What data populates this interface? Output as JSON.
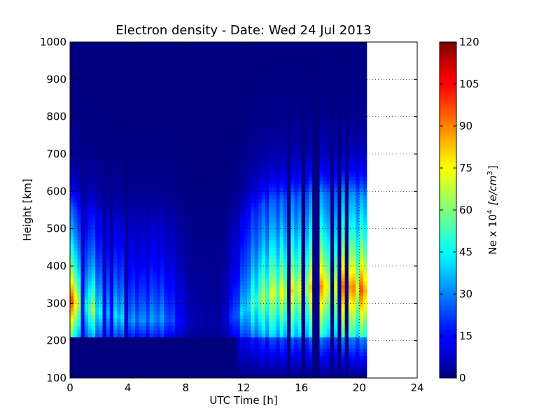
{
  "chart_data": {
    "type": "heatmap",
    "title": "Electron density - Date: Wed 24 Jul 2013",
    "xlabel": "UTC Time [h]",
    "ylabel": "Height [km]",
    "colorbar_label": "Ne x 10",
    "colorbar_label_sup": "4",
    "colorbar_unit": "[e/cm",
    "colorbar_unit_sup": "3",
    "colorbar_unit_end": "]",
    "xlim": [
      0,
      24
    ],
    "ylim": [
      100,
      1000
    ],
    "x_ticks": [
      "0",
      "4",
      "8",
      "12",
      "16",
      "20",
      "24"
    ],
    "y_ticks": [
      "100",
      "200",
      "300",
      "400",
      "500",
      "600",
      "700",
      "800",
      "900",
      "1000"
    ],
    "colorbar_range": [
      0,
      120
    ],
    "colorbar_ticks": [
      "0",
      "15",
      "30",
      "45",
      "60",
      "75",
      "90",
      "105",
      "120"
    ],
    "colormap": "jet",
    "grid": "dotted",
    "data_time_range": [
      0,
      20.5
    ],
    "time_step_h": 0.25,
    "height_step_km": 10,
    "profile_shape": {
      "floor_km": 210,
      "top_scale_km": 250,
      "topside_scale_km": 190
    },
    "peak_profile": [
      {
        "t": 0.0,
        "peak_ne": 100,
        "peak_height_km": 310
      },
      {
        "t": 0.5,
        "peak_ne": 95,
        "peak_height_km": 305
      },
      {
        "t": 0.9,
        "peak_ne": 55,
        "peak_height_km": 295
      },
      {
        "t": 1.5,
        "peak_ne": 70,
        "peak_height_km": 285
      },
      {
        "t": 2.2,
        "peak_ne": 48,
        "peak_height_km": 275
      },
      {
        "t": 3.0,
        "peak_ne": 55,
        "peak_height_km": 270
      },
      {
        "t": 4.0,
        "peak_ne": 35,
        "peak_height_km": 255
      },
      {
        "t": 5.0,
        "peak_ne": 35,
        "peak_height_km": 255
      },
      {
        "t": 6.2,
        "peak_ne": 38,
        "peak_height_km": 260
      },
      {
        "t": 7.5,
        "peak_ne": 20,
        "peak_height_km": 255
      },
      {
        "t": 8.5,
        "peak_ne": 6,
        "peak_height_km": 250
      },
      {
        "t": 10.5,
        "peak_ne": 5,
        "peak_height_km": 250
      },
      {
        "t": 12.0,
        "peak_ne": 45,
        "peak_height_km": 280
      },
      {
        "t": 13.0,
        "peak_ne": 65,
        "peak_height_km": 310
      },
      {
        "t": 14.0,
        "peak_ne": 80,
        "peak_height_km": 330
      },
      {
        "t": 15.0,
        "peak_ne": 75,
        "peak_height_km": 330
      },
      {
        "t": 16.0,
        "peak_ne": 88,
        "peak_height_km": 340
      },
      {
        "t": 17.0,
        "peak_ne": 90,
        "peak_height_km": 345
      },
      {
        "t": 18.0,
        "peak_ne": 92,
        "peak_height_km": 345
      },
      {
        "t": 19.0,
        "peak_ne": 95,
        "peak_height_km": 345
      },
      {
        "t": 20.0,
        "peak_ne": 100,
        "peak_height_km": 340
      },
      {
        "t": 20.5,
        "peak_ne": 100,
        "peak_height_km": 335
      }
    ],
    "dropout_intervals_h": [
      [
        14.9,
        15.15
      ],
      [
        16.0,
        16.2
      ],
      [
        16.85,
        17.15
      ],
      [
        17.9,
        18.2
      ],
      [
        18.55,
        18.75
      ],
      [
        18.95,
        19.15
      ]
    ],
    "minor_gaps_h": [
      [
        0.75,
        0.95
      ],
      [
        1.45,
        1.6
      ],
      [
        2.2,
        2.4
      ],
      [
        2.85,
        3.0
      ],
      [
        3.7,
        3.9
      ]
    ]
  }
}
